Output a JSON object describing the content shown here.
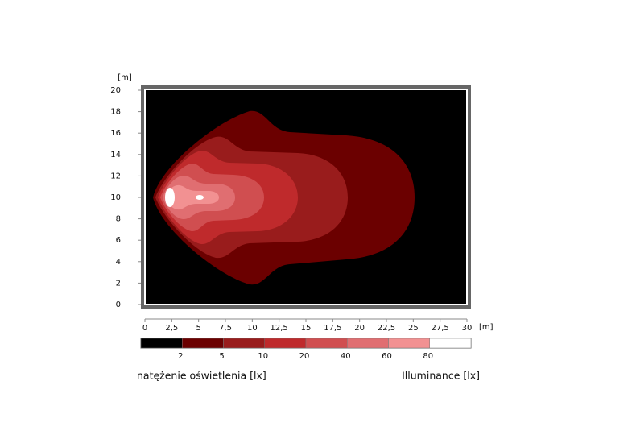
{
  "chart_data": {
    "type": "contour",
    "x_unit": "[m]",
    "y_unit": "[m]",
    "xlim": [
      0,
      30
    ],
    "ylim": [
      0,
      20
    ],
    "xticks": [
      0,
      {
        "value": 2.5,
        "label": "2,5"
      },
      5,
      {
        "value": 7.5,
        "label": "7,5"
      },
      10,
      {
        "value": 12.5,
        "label": "12,5"
      },
      15,
      {
        "value": 17.5,
        "label": "17,5"
      },
      20,
      {
        "value": 22.5,
        "label": "22,5"
      },
      25,
      {
        "value": 27.5,
        "label": "27,5"
      },
      30
    ],
    "yticks": [
      0,
      2,
      4,
      6,
      8,
      10,
      12,
      14,
      16,
      18,
      20
    ],
    "levels": [
      2,
      5,
      10,
      20,
      40,
      60,
      80
    ],
    "colors": [
      "#000000",
      "#6b0000",
      "#991c1c",
      "#bf2a2c",
      "#d04e50",
      "#e06e71",
      "#f29192",
      "#ffffff"
    ],
    "colorbar_label_pl": "natężenie oświetlenia [lx]",
    "colorbar_label_en": "Illuminance [lx]"
  }
}
